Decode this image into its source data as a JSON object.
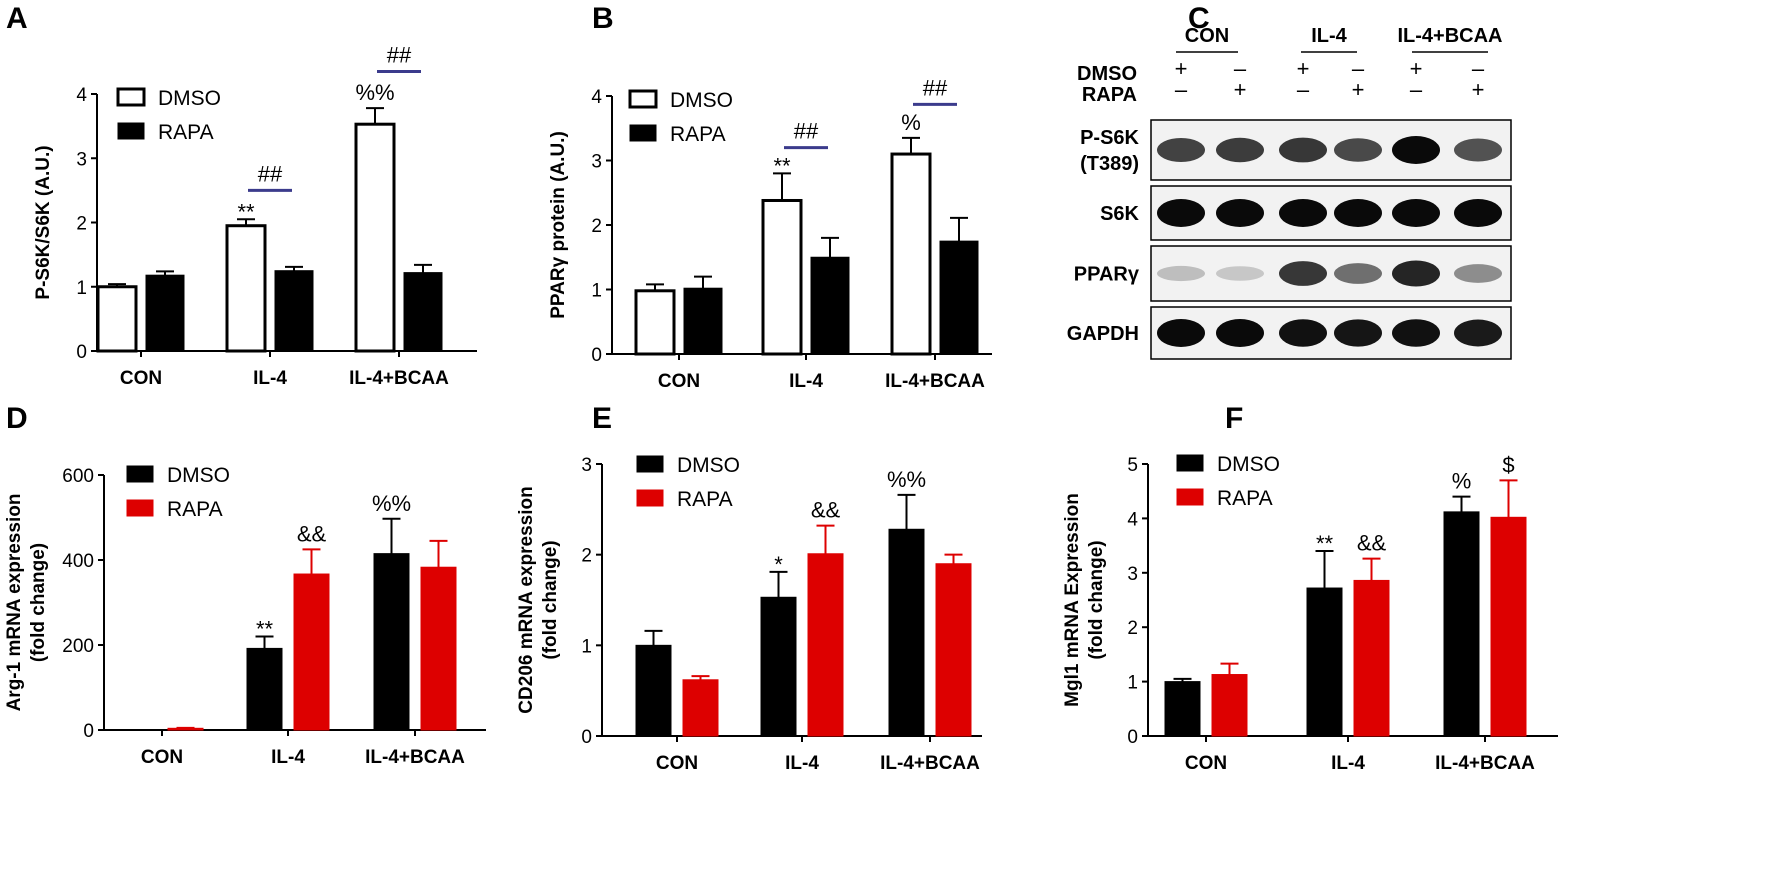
{
  "colors": {
    "axis": "#000000",
    "dmso_open_fill": "#ffffff",
    "black": "#000000",
    "red": "#dd0000",
    "bracket": "#3b3b8c",
    "blot_bg": "#f2f2f2",
    "band_dark": "#0e0e0e"
  },
  "chart_data": [
    {
      "panel": "A",
      "type": "bar",
      "title": "",
      "xlabel": "",
      "ylabel": "P-S6K/S6K (A.U.)",
      "ylim": [
        0,
        4
      ],
      "yticks": [
        "0",
        "1",
        "2",
        "3",
        "4"
      ],
      "categories": [
        "CON",
        "IL-4",
        "IL-4+BCAA"
      ],
      "series": [
        {
          "name": "DMSO",
          "style": "open",
          "values": [
            1.0,
            1.95,
            3.53
          ],
          "errors": [
            0.04,
            0.1,
            0.25
          ]
        },
        {
          "name": "RAPA",
          "style": "black",
          "values": [
            1.18,
            1.25,
            1.22
          ],
          "errors": [
            0.06,
            0.06,
            0.12
          ]
        }
      ],
      "annotations": [
        {
          "text": "**",
          "category": 1,
          "series": 0
        },
        {
          "text": "%%",
          "category": 2,
          "series": 0
        }
      ],
      "brackets": [
        {
          "text": "##",
          "category": 1,
          "level": 2.5
        },
        {
          "text": "##",
          "category": 2,
          "level": 4.35
        }
      ]
    },
    {
      "panel": "B",
      "type": "bar",
      "title": "",
      "xlabel": "",
      "ylabel": "PPARγ protein (A.U.)",
      "ylim": [
        0,
        4
      ],
      "yticks": [
        "0",
        "1",
        "2",
        "3",
        "4"
      ],
      "categories": [
        "CON",
        "IL-4",
        "IL-4+BCAA"
      ],
      "series": [
        {
          "name": "DMSO",
          "style": "open",
          "values": [
            0.98,
            2.38,
            3.1
          ],
          "errors": [
            0.1,
            0.42,
            0.25
          ]
        },
        {
          "name": "RAPA",
          "style": "black",
          "values": [
            1.02,
            1.5,
            1.75
          ],
          "errors": [
            0.18,
            0.3,
            0.36
          ]
        }
      ],
      "annotations": [
        {
          "text": "**",
          "category": 1,
          "series": 0
        },
        {
          "text": "%",
          "category": 2,
          "series": 0
        }
      ],
      "brackets": [
        {
          "text": "##",
          "category": 1,
          "level": 3.2
        },
        {
          "text": "##",
          "category": 2,
          "level": 3.87
        }
      ]
    },
    {
      "panel": "D",
      "type": "bar",
      "title": "",
      "xlabel": "",
      "ylabel": "Arg-1 mRNA expression (fold change)",
      "ylabel_lines": [
        "Arg-1 mRNA expression",
        "(fold change)"
      ],
      "ylim": [
        0,
        600
      ],
      "yticks": [
        "0",
        "200",
        "400",
        "600"
      ],
      "categories": [
        "CON",
        "IL-4",
        "IL-4+BCAA"
      ],
      "series": [
        {
          "name": "DMSO",
          "style": "black",
          "values": [
            1,
            192,
            415
          ],
          "errors": [
            0,
            28,
            82
          ]
        },
        {
          "name": "RAPA",
          "style": "red",
          "values": [
            4,
            367,
            383
          ],
          "errors": [
            1,
            58,
            62
          ]
        }
      ],
      "annotations": [
        {
          "text": "**",
          "category": 1,
          "series": 0
        },
        {
          "text": "&&",
          "category": 1,
          "series": 1
        },
        {
          "text": "%%",
          "category": 2,
          "series": 0
        }
      ],
      "brackets": []
    },
    {
      "panel": "E",
      "type": "bar",
      "title": "",
      "xlabel": "",
      "ylabel": "CD206 mRNA expression (fold change)",
      "ylabel_lines": [
        "CD206 mRNA expression",
        "(fold change)"
      ],
      "ylim": [
        0,
        3
      ],
      "yticks": [
        "0",
        "1",
        "2",
        "3"
      ],
      "categories": [
        "CON",
        "IL-4",
        "IL-4+BCAA"
      ],
      "series": [
        {
          "name": "DMSO",
          "style": "black",
          "values": [
            1.0,
            1.53,
            2.28
          ],
          "errors": [
            0.16,
            0.28,
            0.38
          ]
        },
        {
          "name": "RAPA",
          "style": "red",
          "values": [
            0.62,
            2.01,
            1.9
          ],
          "errors": [
            0.04,
            0.31,
            0.1
          ]
        }
      ],
      "annotations": [
        {
          "text": "*",
          "category": 1,
          "series": 0
        },
        {
          "text": "&&",
          "category": 1,
          "series": 1
        },
        {
          "text": "%%",
          "category": 2,
          "series": 0
        }
      ],
      "brackets": []
    },
    {
      "panel": "F",
      "type": "bar",
      "title": "",
      "xlabel": "",
      "ylabel": "Mgl1 mRNA Expression (fold change)",
      "ylabel_lines": [
        "Mgl1 mRNA Expression",
        "(fold change)"
      ],
      "ylim": [
        0,
        5
      ],
      "yticks": [
        "0",
        "1",
        "2",
        "3",
        "4",
        "5"
      ],
      "categories": [
        "CON",
        "IL-4",
        "IL-4+BCAA"
      ],
      "series": [
        {
          "name": "DMSO",
          "style": "black",
          "values": [
            1.0,
            2.72,
            4.12
          ],
          "errors": [
            0.05,
            0.68,
            0.28
          ]
        },
        {
          "name": "RAPA",
          "style": "red",
          "values": [
            1.13,
            2.86,
            4.02
          ],
          "errors": [
            0.2,
            0.4,
            0.68
          ]
        }
      ],
      "annotations": [
        {
          "text": "**",
          "category": 1,
          "series": 0
        },
        {
          "text": "&&",
          "category": 1,
          "series": 1
        },
        {
          "text": "%",
          "category": 2,
          "series": 0
        },
        {
          "text": "$",
          "category": 2,
          "series": 1
        }
      ],
      "brackets": []
    }
  ],
  "blot": {
    "panel": "C",
    "groups": [
      "CON",
      "IL-4",
      "IL-4+BCAA"
    ],
    "treatments": [
      {
        "name": "DMSO",
        "signs": [
          "+",
          "–",
          "+",
          "–",
          "+",
          "–"
        ]
      },
      {
        "name": "RAPA",
        "signs": [
          "–",
          "+",
          "–",
          "+",
          "–",
          "+"
        ]
      }
    ],
    "rows": [
      {
        "label": "P-S6K (T389)",
        "label_lines": [
          "P-S6K",
          "(T389)"
        ],
        "intensity": [
          0.75,
          0.78,
          0.8,
          0.72,
          1.0,
          0.68
        ]
      },
      {
        "label": "S6K",
        "label_lines": [
          "S6K"
        ],
        "intensity": [
          1.0,
          1.0,
          1.0,
          1.0,
          1.0,
          1.0
        ]
      },
      {
        "label": "PPARγ",
        "label_lines": [
          "PPARγ"
        ],
        "intensity": [
          0.2,
          0.16,
          0.8,
          0.55,
          0.88,
          0.42
        ]
      },
      {
        "label": "GAPDH",
        "label_lines": [
          "GAPDH"
        ],
        "intensity": [
          1.0,
          1.0,
          0.97,
          0.95,
          0.97,
          0.93
        ]
      }
    ]
  }
}
